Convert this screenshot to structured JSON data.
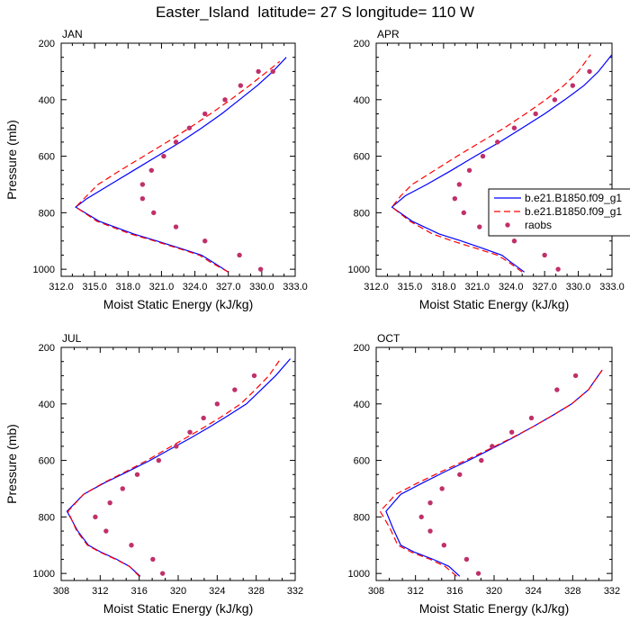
{
  "figure": {
    "title": "Easter_Island  latitude= 27 S longitude= 110 W"
  },
  "colors": {
    "series_solid": "#0000ff",
    "series_dashed": "#ff0000",
    "obs_points": "#c0306a"
  },
  "legend": {
    "entries": [
      "b.e21.B1850.f09_g1",
      "b.e21.B1850.f09_g1",
      "raobs"
    ]
  },
  "chart_data": [
    {
      "type": "line",
      "title": "JAN",
      "xlabel": "Moist Static Energy (kJ/kg)",
      "ylabel": "Pressure (mb)",
      "xlim": [
        312,
        333
      ],
      "ylim": [
        200,
        1025
      ],
      "y_reversed": true,
      "xticks": [
        "312.0",
        "315.0",
        "318.0",
        "321.0",
        "324.0",
        "327.0",
        "330.0",
        "333.0"
      ],
      "yticks": [
        "200",
        "400",
        "600",
        "800",
        "1000"
      ],
      "series": [
        {
          "name": "b.e21.B1850.f09_g1",
          "style": "solid",
          "x": [
            327.0,
            325.6,
            324.6,
            322.6,
            320.6,
            318.5,
            315.4,
            313.3,
            314.3,
            316.4,
            318.5,
            320.6,
            322.7,
            324.6,
            326.4,
            328.0,
            329.6,
            331.0,
            332.2
          ],
          "y": [
            1010,
            975,
            950,
            925,
            900,
            875,
            830,
            780,
            750,
            700,
            650,
            600,
            550,
            500,
            450,
            400,
            350,
            300,
            250
          ]
        },
        {
          "name": "b.e21.B1850.f09_g1",
          "style": "dashed",
          "x": [
            327.0,
            325.4,
            324.4,
            322.4,
            320.4,
            318.2,
            315.2,
            313.3,
            314.3,
            315.3,
            317.3,
            319.4,
            321.5,
            323.5,
            325.4,
            327.2,
            328.9,
            330.5,
            331.6
          ],
          "y": [
            1010,
            975,
            950,
            925,
            900,
            875,
            830,
            780,
            740,
            700,
            650,
            600,
            550,
            500,
            450,
            400,
            350,
            300,
            265
          ]
        },
        {
          "name": "raobs",
          "style": "points",
          "x": [
            329.9,
            328.0,
            324.9,
            322.3,
            320.3,
            319.3,
            319.3,
            320.1,
            321.2,
            322.3,
            323.5,
            324.9,
            326.7,
            328.1,
            329.7,
            331.0
          ],
          "y": [
            1000,
            950,
            900,
            850,
            800,
            750,
            700,
            650,
            600,
            550,
            500,
            450,
            400,
            350,
            300,
            300
          ]
        }
      ]
    },
    {
      "type": "line",
      "title": "APR",
      "xlabel": "Moist Static Energy (kJ/kg)",
      "ylabel": "",
      "xlim": [
        312,
        333
      ],
      "ylim": [
        200,
        1025
      ],
      "y_reversed": true,
      "xticks": [
        "312.0",
        "315.0",
        "318.0",
        "321.0",
        "324.0",
        "327.0",
        "330.0",
        "333.0"
      ],
      "yticks": [
        "200",
        "400",
        "600",
        "800",
        "1000"
      ],
      "series": [
        {
          "name": "b.e21.B1850.f09_g1",
          "style": "solid",
          "x": [
            325.2,
            324.0,
            323.2,
            321.4,
            319.6,
            317.6,
            315.2,
            313.4,
            314.6,
            316.5,
            318.7,
            320.8,
            323.0,
            325.0,
            327.0,
            328.8,
            330.5,
            331.8,
            333.0
          ],
          "y": [
            1010,
            975,
            950,
            925,
            900,
            875,
            830,
            780,
            740,
            700,
            650,
            600,
            550,
            500,
            450,
            400,
            350,
            300,
            240
          ]
        },
        {
          "name": "b.e21.B1850.f09_g1",
          "style": "dashed",
          "x": [
            325.0,
            323.8,
            322.8,
            320.8,
            318.8,
            317.0,
            315.0,
            313.4,
            314.2,
            315.2,
            317.2,
            319.2,
            321.3,
            323.4,
            325.3,
            327.1,
            328.7,
            330.0,
            331.1
          ],
          "y": [
            1010,
            975,
            950,
            925,
            900,
            875,
            830,
            780,
            740,
            700,
            650,
            600,
            550,
            500,
            450,
            400,
            350,
            300,
            240
          ]
        },
        {
          "name": "raobs",
          "style": "points",
          "x": [
            328.2,
            327.0,
            324.3,
            321.2,
            319.8,
            319.0,
            319.4,
            320.3,
            321.5,
            322.8,
            324.3,
            326.2,
            327.9,
            329.5,
            331.0
          ],
          "y": [
            1000,
            950,
            900,
            850,
            800,
            750,
            700,
            650,
            600,
            550,
            500,
            450,
            400,
            350,
            300
          ]
        }
      ]
    },
    {
      "type": "line",
      "title": "JUL",
      "xlabel": "Moist Static Energy (kJ/kg)",
      "ylabel": "Pressure (mb)",
      "xlim": [
        308,
        332
      ],
      "ylim": [
        200,
        1025
      ],
      "y_reversed": true,
      "xticks": [
        "308",
        "312",
        "316",
        "320",
        "324",
        "328",
        "332"
      ],
      "yticks": [
        "200",
        "400",
        "600",
        "800",
        "1000"
      ],
      "series": [
        {
          "name": "b.e21.B1850.f09_g1",
          "style": "solid",
          "x": [
            316.1,
            315.0,
            313.7,
            312.1,
            310.8,
            309.7,
            308.6,
            310.3,
            312.4,
            314.8,
            317.1,
            319.2,
            321.3,
            323.3,
            325.2,
            327.0,
            328.5,
            330.0,
            331.5
          ],
          "y": [
            1010,
            975,
            950,
            925,
            900,
            850,
            780,
            720,
            680,
            640,
            600,
            560,
            520,
            480,
            440,
            400,
            350,
            300,
            240
          ]
        },
        {
          "name": "b.e21.B1850.f09_g1",
          "style": "dashed",
          "x": [
            316.0,
            315.0,
            313.6,
            312.0,
            310.7,
            309.6,
            308.7,
            310.3,
            312.3,
            314.6,
            316.8,
            318.8,
            320.8,
            322.8,
            324.7,
            326.4,
            327.9,
            329.3,
            330.5
          ],
          "y": [
            1010,
            975,
            950,
            925,
            900,
            850,
            780,
            720,
            680,
            640,
            600,
            560,
            520,
            480,
            440,
            400,
            350,
            300,
            240
          ]
        },
        {
          "name": "raobs",
          "style": "points",
          "x": [
            318.4,
            317.4,
            315.2,
            312.6,
            311.5,
            313.0,
            314.3,
            315.8,
            318.0,
            319.8,
            321.2,
            322.6,
            324.0,
            325.8,
            327.8
          ],
          "y": [
            1000,
            950,
            900,
            850,
            800,
            750,
            700,
            650,
            600,
            550,
            500,
            450,
            400,
            350,
            300
          ]
        }
      ]
    },
    {
      "type": "line",
      "title": "OCT",
      "xlabel": "Moist Static Energy (kJ/kg)",
      "ylabel": "",
      "xlim": [
        308,
        332
      ],
      "ylim": [
        200,
        1025
      ],
      "y_reversed": true,
      "xticks": [
        "308",
        "312",
        "316",
        "320",
        "324",
        "328",
        "332"
      ],
      "yticks": [
        "200",
        "400",
        "600",
        "800",
        "1000"
      ],
      "series": [
        {
          "name": "b.e21.B1850.f09_g1",
          "style": "solid",
          "x": [
            316.5,
            315.4,
            313.8,
            311.9,
            310.5,
            309.7,
            309.0,
            310.5,
            312.7,
            315.0,
            317.4,
            319.7,
            321.9,
            324.0,
            326.0,
            327.9,
            329.6,
            331.0
          ],
          "y": [
            1010,
            975,
            950,
            925,
            900,
            840,
            780,
            720,
            680,
            640,
            600,
            560,
            520,
            480,
            440,
            400,
            350,
            280
          ]
        },
        {
          "name": "b.e21.B1850.f09_g1",
          "style": "dashed",
          "x": [
            316.2,
            315.0,
            313.5,
            311.6,
            310.2,
            309.4,
            308.4,
            310.0,
            312.2,
            314.6,
            317.1,
            319.5,
            321.8,
            324.0,
            326.0,
            327.9,
            329.6,
            331.0
          ],
          "y": [
            1010,
            975,
            950,
            925,
            900,
            840,
            780,
            720,
            680,
            640,
            600,
            560,
            520,
            480,
            440,
            400,
            350,
            280
          ]
        },
        {
          "name": "raobs",
          "style": "points",
          "x": [
            318.4,
            317.2,
            314.9,
            313.5,
            312.6,
            313.5,
            314.7,
            316.5,
            318.7,
            319.8,
            321.8,
            323.8,
            326.4,
            328.3
          ],
          "y": [
            1000,
            950,
            900,
            850,
            800,
            750,
            700,
            650,
            600,
            550,
            500,
            450,
            350,
            300
          ]
        }
      ]
    }
  ]
}
